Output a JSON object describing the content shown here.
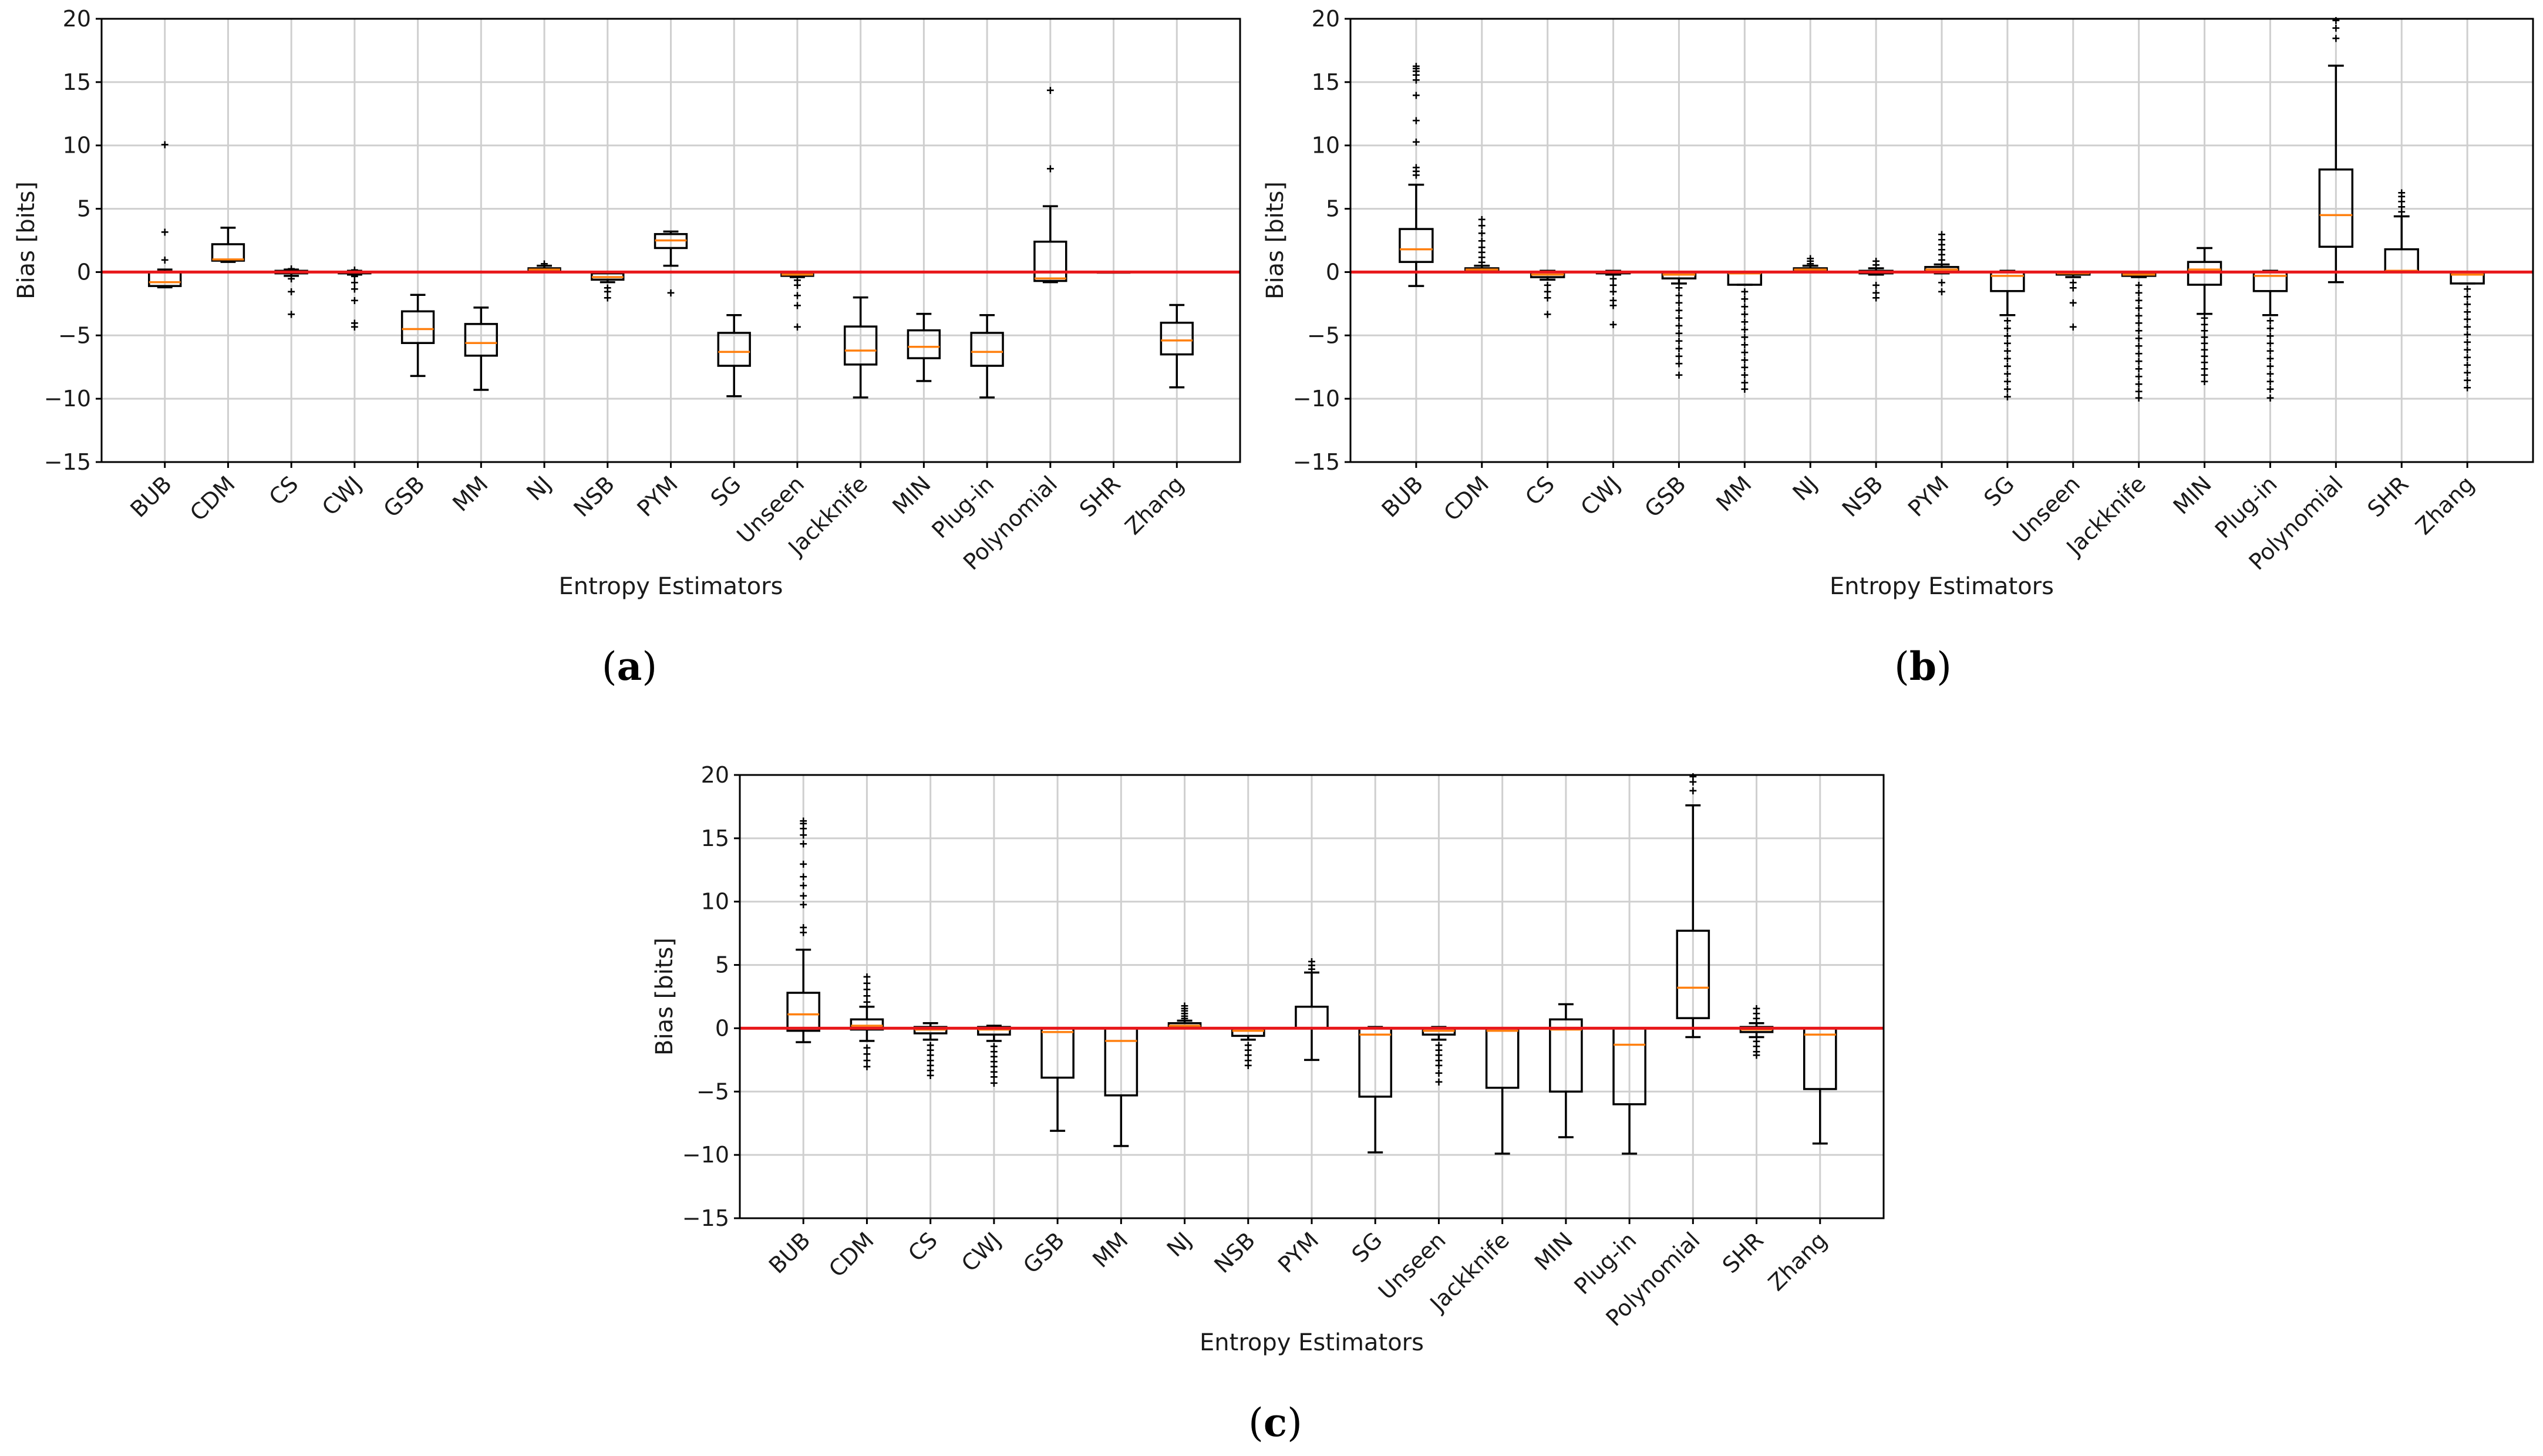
{
  "chart_data": [
    {
      "type": "box",
      "panel_label": "a",
      "xlabel": "Entropy Estimators",
      "ylabel": "Bias [bits]",
      "ylim": [
        -15,
        20
      ],
      "yticks": [
        -15,
        -10,
        -5,
        0,
        5,
        10,
        15,
        20
      ],
      "ytick_labels": [
        "−15",
        "−10",
        "−5",
        "0",
        "5",
        "10",
        "15",
        "20"
      ],
      "reference_line_y": 0,
      "grid": true,
      "categories": [
        "BUB",
        "CDM",
        "CS",
        "CWJ",
        "GSB",
        "MM",
        "NJ",
        "NSB",
        "PYM",
        "SG",
        "Unseen",
        "Jackknife",
        "MIN",
        "Plug-in",
        "Polynomial",
        "SHR",
        "Zhang"
      ],
      "boxes": [
        {
          "whislo": -1.2,
          "q1": -1.1,
          "med": -0.8,
          "q3": 0.0,
          "whishi": 0.2,
          "fliers": [
            10.1,
            3.2,
            1.0
          ]
        },
        {
          "whislo": 0.8,
          "q1": 0.9,
          "med": 1.0,
          "q3": 2.2,
          "whishi": 3.5,
          "fliers": []
        },
        {
          "whislo": -0.3,
          "q1": -0.1,
          "med": 0.0,
          "q3": 0.1,
          "whishi": 0.2,
          "fliers": [
            0.3,
            -0.5,
            -1.5,
            -3.3
          ]
        },
        {
          "whislo": -0.2,
          "q1": -0.1,
          "med": 0.0,
          "q3": 0.0,
          "whishi": 0.1,
          "fliers": [
            0.2,
            -0.3,
            -0.8,
            -1.3,
            -2.2,
            -4.0,
            -4.3
          ]
        },
        {
          "whislo": -8.2,
          "q1": -5.6,
          "med": -4.5,
          "q3": -3.1,
          "whishi": -1.8,
          "fliers": []
        },
        {
          "whislo": -9.3,
          "q1": -6.6,
          "med": -5.6,
          "q3": -4.1,
          "whishi": -2.8,
          "fliers": []
        },
        {
          "whislo": 0.0,
          "q1": 0.1,
          "med": 0.2,
          "q3": 0.3,
          "whishi": 0.5,
          "fliers": [
            0.7
          ]
        },
        {
          "whislo": -0.8,
          "q1": -0.6,
          "med": -0.4,
          "q3": -0.1,
          "whishi": 0.0,
          "fliers": [
            -1.2,
            -1.5,
            -2.0
          ]
        },
        {
          "whislo": 0.5,
          "q1": 1.9,
          "med": 2.5,
          "q3": 3.0,
          "whishi": 3.2,
          "fliers": [
            -1.6
          ]
        },
        {
          "whislo": -9.8,
          "q1": -7.4,
          "med": -6.3,
          "q3": -4.8,
          "whishi": -3.4,
          "fliers": []
        },
        {
          "whislo": -0.4,
          "q1": -0.3,
          "med": -0.2,
          "q3": -0.1,
          "whishi": 0.0,
          "fliers": [
            -0.6,
            -1.0,
            -1.8,
            -2.6,
            -4.3
          ]
        },
        {
          "whislo": -9.9,
          "q1": -7.3,
          "med": -6.2,
          "q3": -4.3,
          "whishi": -2.0,
          "fliers": []
        },
        {
          "whislo": -8.6,
          "q1": -6.8,
          "med": -5.9,
          "q3": -4.6,
          "whishi": -3.3,
          "fliers": []
        },
        {
          "whislo": -9.9,
          "q1": -7.4,
          "med": -6.3,
          "q3": -4.8,
          "whishi": -3.4,
          "fliers": []
        },
        {
          "whislo": -0.8,
          "q1": -0.7,
          "med": -0.5,
          "q3": 2.4,
          "whishi": 5.2,
          "fliers": [
            8.2,
            14.4
          ]
        },
        {
          "whislo": 0.0,
          "q1": 0.0,
          "med": 0.0,
          "q3": 0.0,
          "whishi": 0.0,
          "fliers": []
        },
        {
          "whislo": -9.1,
          "q1": -6.5,
          "med": -5.4,
          "q3": -4.0,
          "whishi": -2.6,
          "fliers": []
        }
      ]
    },
    {
      "type": "box",
      "panel_label": "b",
      "xlabel": "Entropy Estimators",
      "ylabel": "Bias [bits]",
      "ylim": [
        -15,
        20
      ],
      "yticks": [
        -15,
        -10,
        -5,
        0,
        5,
        10,
        15,
        20
      ],
      "ytick_labels": [
        "−15",
        "−10",
        "−5",
        "0",
        "5",
        "10",
        "15",
        "20"
      ],
      "reference_line_y": 0,
      "grid": true,
      "categories": [
        "BUB",
        "CDM",
        "CS",
        "CWJ",
        "GSB",
        "MM",
        "NJ",
        "NSB",
        "PYM",
        "SG",
        "Unseen",
        "Jackknife",
        "MIN",
        "Plug-in",
        "Polynomial",
        "SHR",
        "Zhang"
      ],
      "boxes": [
        {
          "whislo": -1.1,
          "q1": 0.8,
          "med": 1.8,
          "q3": 3.4,
          "whishi": 6.9,
          "fliers": [
            7.7,
            8.0,
            8.3,
            10.3,
            12.0,
            14.0,
            15.2,
            15.6,
            15.9,
            16.1,
            16.3
          ]
        },
        {
          "whislo": 0.0,
          "q1": 0.1,
          "med": 0.2,
          "q3": 0.3,
          "whishi": 0.5,
          "fliers": [
            0.8,
            1.2,
            1.6,
            2.0,
            2.5,
            3.1,
            3.7,
            4.2
          ]
        },
        {
          "whislo": -0.6,
          "q1": -0.4,
          "med": -0.2,
          "q3": 0.0,
          "whishi": 0.1,
          "fliers": [
            -1.0,
            -1.5,
            -2.0,
            -3.3
          ]
        },
        {
          "whislo": -0.2,
          "q1": -0.1,
          "med": 0.0,
          "q3": 0.0,
          "whishi": 0.1,
          "fliers": [
            -0.5,
            -1.0,
            -1.5,
            -2.2,
            -2.6,
            -4.1
          ]
        },
        {
          "whislo": -0.9,
          "q1": -0.5,
          "med": -0.2,
          "q3": 0.0,
          "whishi": 0.0,
          "fliers": [
            -1.2,
            -1.8,
            -2.4,
            -3.0,
            -3.6,
            -4.2,
            -4.8,
            -5.4,
            -6.0,
            -6.6,
            -7.2,
            -8.1
          ]
        },
        {
          "whislo": -1.0,
          "q1": -1.0,
          "med": -0.1,
          "q3": 0.0,
          "whishi": 0.0,
          "fliers": [
            -1.5,
            -2.1,
            -2.7,
            -3.3,
            -3.9,
            -4.5,
            -5.1,
            -5.7,
            -6.3,
            -6.9,
            -7.5,
            -8.1,
            -8.7,
            -9.2
          ]
        },
        {
          "whislo": 0.0,
          "q1": 0.1,
          "med": 0.2,
          "q3": 0.3,
          "whishi": 0.5,
          "fliers": [
            0.7,
            0.9,
            1.1
          ]
        },
        {
          "whislo": -0.2,
          "q1": -0.1,
          "med": 0.0,
          "q3": 0.1,
          "whishi": 0.3,
          "fliers": [
            -1.0,
            -1.6,
            -2.0,
            0.6,
            0.9
          ]
        },
        {
          "whislo": -0.1,
          "q1": 0.0,
          "med": 0.2,
          "q3": 0.4,
          "whishi": 0.6,
          "fliers": [
            -1.5,
            -0.8,
            1.0,
            1.4,
            1.8,
            2.2,
            2.6,
            3.0
          ]
        },
        {
          "whislo": -3.4,
          "q1": -1.5,
          "med": -0.3,
          "q3": 0.0,
          "whishi": 0.1,
          "fliers": [
            -3.8,
            -4.4,
            -5.0,
            -5.6,
            -6.2,
            -6.8,
            -7.4,
            -8.0,
            -8.6,
            -9.2,
            -9.8
          ]
        },
        {
          "whislo": -0.4,
          "q1": -0.2,
          "med": -0.1,
          "q3": 0.0,
          "whishi": 0.0,
          "fliers": [
            -0.8,
            -1.2,
            -2.4,
            -4.3
          ]
        },
        {
          "whislo": -0.4,
          "q1": -0.3,
          "med": -0.2,
          "q3": -0.1,
          "whishi": 0.0,
          "fliers": [
            -1.0,
            -1.6,
            -2.2,
            -2.8,
            -3.4,
            -4.0,
            -4.6,
            -5.2,
            -5.8,
            -6.4,
            -7.0,
            -7.6,
            -8.2,
            -8.8,
            -9.4,
            -9.9
          ]
        },
        {
          "whislo": -3.3,
          "q1": -1.0,
          "med": 0.2,
          "q3": 0.8,
          "whishi": 1.9,
          "fliers": [
            -3.6,
            -4.1,
            -4.6,
            -5.1,
            -5.6,
            -6.1,
            -6.6,
            -7.1,
            -7.6,
            -8.1,
            -8.6
          ]
        },
        {
          "whislo": -3.4,
          "q1": -1.5,
          "med": -0.3,
          "q3": 0.0,
          "whishi": 0.1,
          "fliers": [
            -3.8,
            -4.4,
            -5.0,
            -5.6,
            -6.2,
            -6.8,
            -7.4,
            -8.0,
            -8.6,
            -9.2,
            -9.9
          ]
        },
        {
          "whislo": -0.8,
          "q1": 2.0,
          "med": 4.5,
          "q3": 8.1,
          "whishi": 16.3,
          "fliers": [
            18.5,
            19.3,
            19.9
          ]
        },
        {
          "whislo": 0.0,
          "q1": 0.0,
          "med": 0.1,
          "q3": 1.8,
          "whishi": 4.4,
          "fliers": [
            4.8,
            5.2,
            5.6,
            6.0,
            6.3
          ]
        },
        {
          "whislo": -0.9,
          "q1": -0.9,
          "med": -0.2,
          "q3": 0.0,
          "whishi": 0.0,
          "fliers": [
            -1.3,
            -1.9,
            -2.5,
            -3.1,
            -3.7,
            -4.3,
            -4.9,
            -5.5,
            -6.1,
            -6.7,
            -7.3,
            -7.9,
            -8.5,
            -9.1
          ]
        }
      ]
    },
    {
      "type": "box",
      "panel_label": "c",
      "xlabel": "Entropy Estimators",
      "ylabel": "Bias [bits]",
      "ylim": [
        -15,
        20
      ],
      "yticks": [
        -15,
        -10,
        -5,
        0,
        5,
        10,
        15,
        20
      ],
      "ytick_labels": [
        "−15",
        "−10",
        "−5",
        "0",
        "5",
        "10",
        "15",
        "20"
      ],
      "reference_line_y": 0,
      "grid": true,
      "categories": [
        "BUB",
        "CDM",
        "CS",
        "CWJ",
        "GSB",
        "MM",
        "NJ",
        "NSB",
        "PYM",
        "SG",
        "Unseen",
        "Jackknife",
        "MIN",
        "Plug-in",
        "Polynomial",
        "SHR",
        "Zhang"
      ],
      "boxes": [
        {
          "whislo": -1.1,
          "q1": -0.2,
          "med": 1.1,
          "q3": 2.8,
          "whishi": 6.2,
          "fliers": [
            7.6,
            8.0,
            9.8,
            10.5,
            11.3,
            12.0,
            13.0,
            14.6,
            15.3,
            15.8,
            16.2,
            16.4
          ]
        },
        {
          "whislo": -1.0,
          "q1": -0.1,
          "med": 0.2,
          "q3": 0.7,
          "whishi": 1.7,
          "fliers": [
            -1.5,
            -2.0,
            -2.5,
            -3.0,
            2.1,
            2.6,
            3.1,
            3.6,
            4.1
          ]
        },
        {
          "whislo": -0.9,
          "q1": -0.4,
          "med": -0.1,
          "q3": 0.1,
          "whishi": 0.4,
          "fliers": [
            -1.3,
            -1.7,
            -2.1,
            -2.5,
            -2.9,
            -3.3,
            -3.7
          ]
        },
        {
          "whislo": -1.0,
          "q1": -0.5,
          "med": -0.1,
          "q3": 0.1,
          "whishi": 0.2,
          "fliers": [
            -1.4,
            -1.8,
            -2.2,
            -2.6,
            -3.0,
            -3.4,
            -3.8,
            -4.3
          ]
        },
        {
          "whislo": -8.1,
          "q1": -3.9,
          "med": -0.3,
          "q3": 0.0,
          "whishi": 0.0,
          "fliers": []
        },
        {
          "whislo": -9.3,
          "q1": -5.3,
          "med": -1.0,
          "q3": 0.0,
          "whishi": 0.0,
          "fliers": []
        },
        {
          "whislo": 0.0,
          "q1": 0.1,
          "med": 0.2,
          "q3": 0.4,
          "whishi": 0.6,
          "fliers": [
            0.8,
            1.0,
            1.2,
            1.4,
            1.6,
            1.8
          ]
        },
        {
          "whislo": -0.9,
          "q1": -0.6,
          "med": -0.2,
          "q3": 0.0,
          "whishi": 0.0,
          "fliers": [
            -1.3,
            -1.7,
            -2.1,
            -2.5,
            -2.9
          ]
        },
        {
          "whislo": -2.5,
          "q1": 0.0,
          "med": 0.0,
          "q3": 1.7,
          "whishi": 4.4,
          "fliers": [
            4.7,
            5.0,
            5.3
          ]
        },
        {
          "whislo": -9.8,
          "q1": -5.4,
          "med": -0.5,
          "q3": 0.0,
          "whishi": 0.1,
          "fliers": []
        },
        {
          "whislo": -0.9,
          "q1": -0.5,
          "med": -0.2,
          "q3": 0.0,
          "whishi": 0.1,
          "fliers": [
            -1.3,
            -1.7,
            -2.1,
            -2.5,
            -2.9,
            -3.5,
            -4.2
          ]
        },
        {
          "whislo": -9.9,
          "q1": -4.7,
          "med": -0.2,
          "q3": 0.0,
          "whishi": 0.0,
          "fliers": []
        },
        {
          "whislo": -8.6,
          "q1": -5.0,
          "med": -0.1,
          "q3": 0.7,
          "whishi": 1.9,
          "fliers": []
        },
        {
          "whislo": -9.9,
          "q1": -6.0,
          "med": -1.3,
          "q3": 0.0,
          "whishi": 0.0,
          "fliers": []
        },
        {
          "whislo": -0.7,
          "q1": 0.8,
          "med": 3.2,
          "q3": 7.7,
          "whishi": 17.6,
          "fliers": [
            18.8,
            19.5,
            19.9
          ]
        },
        {
          "whislo": -0.7,
          "q1": -0.3,
          "med": -0.1,
          "q3": 0.1,
          "whishi": 0.4,
          "fliers": [
            -1.0,
            -1.4,
            -1.8,
            -2.1,
            0.8,
            1.2,
            1.6
          ]
        },
        {
          "whislo": -9.1,
          "q1": -4.8,
          "med": -0.5,
          "q3": 0.0,
          "whishi": 0.0,
          "fliers": []
        }
      ]
    }
  ]
}
